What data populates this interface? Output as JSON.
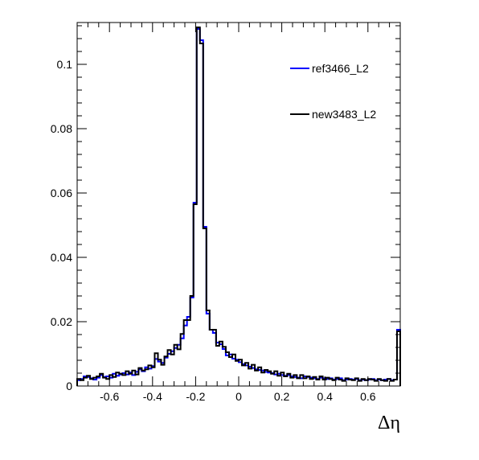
{
  "chart_data": {
    "type": "line",
    "style": "step-histogram",
    "title": "",
    "xlabel": "Δη",
    "ylabel": "",
    "xlim": [
      -0.75,
      0.75
    ],
    "ylim": [
      0,
      0.113
    ],
    "x_ticks": [
      -0.6,
      -0.4,
      -0.2,
      0,
      0.2,
      0.4,
      0.6
    ],
    "x_tick_labels": [
      "-0.6",
      "-0.4",
      "-0.2",
      "0",
      "0.2",
      "0.4",
      "0.6"
    ],
    "y_ticks": [
      0,
      0.02,
      0.04,
      0.06,
      0.08,
      0.1
    ],
    "y_tick_labels": [
      "0",
      "0.02",
      "0.04",
      "0.06",
      "0.08",
      "0.1"
    ],
    "grid": false,
    "legend_position": "top-right",
    "bin_edges_start": -0.75,
    "bin_width": 0.015,
    "series": [
      {
        "name": "ref3466_L2",
        "color": "#0000ff",
        "values": [
          0.0018,
          0.0022,
          0.003,
          0.0028,
          0.0024,
          0.002,
          0.0026,
          0.0034,
          0.0028,
          0.003,
          0.0026,
          0.0038,
          0.0032,
          0.0036,
          0.004,
          0.0036,
          0.0042,
          0.0034,
          0.0044,
          0.0052,
          0.0046,
          0.0058,
          0.0054,
          0.0062,
          0.0084,
          0.0076,
          0.0072,
          0.0088,
          0.01,
          0.0108,
          0.0118,
          0.0128,
          0.0148,
          0.0188,
          0.0215,
          0.0275,
          0.057,
          0.111,
          0.1075,
          0.0495,
          0.0225,
          0.0175,
          0.0165,
          0.0135,
          0.013,
          0.0115,
          0.0095,
          0.0098,
          0.0085,
          0.0082,
          0.0074,
          0.0068,
          0.0064,
          0.006,
          0.0056,
          0.0052,
          0.005,
          0.0048,
          0.0044,
          0.0042,
          0.004,
          0.0036,
          0.0038,
          0.0034,
          0.0032,
          0.0034,
          0.003,
          0.0028,
          0.0026,
          0.0024,
          0.003,
          0.0028,
          0.0026,
          0.0024,
          0.0022,
          0.0026,
          0.0024,
          0.0022,
          0.0024,
          0.002,
          0.0022,
          0.0024,
          0.0018,
          0.002,
          0.0022,
          0.002,
          0.0022,
          0.0018,
          0.002,
          0.0018,
          0.002,
          0.0022,
          0.0018,
          0.002,
          0.0018,
          0.002,
          0.0022,
          0.0018,
          0.002,
          0.0175
        ]
      },
      {
        "name": "new3483_L2",
        "color": "#000000",
        "values": [
          0.0022,
          0.0018,
          0.0026,
          0.0032,
          0.0022,
          0.0026,
          0.003,
          0.0038,
          0.0026,
          0.0022,
          0.0034,
          0.0028,
          0.0042,
          0.0038,
          0.0034,
          0.0046,
          0.0038,
          0.0048,
          0.0036,
          0.0056,
          0.0048,
          0.0052,
          0.0064,
          0.0058,
          0.0102,
          0.0082,
          0.0066,
          0.0092,
          0.0112,
          0.0098,
          0.0128,
          0.0114,
          0.0162,
          0.0205,
          0.0205,
          0.028,
          0.0565,
          0.1115,
          0.1065,
          0.049,
          0.0235,
          0.0175,
          0.0175,
          0.0125,
          0.0138,
          0.0122,
          0.0105,
          0.009,
          0.0098,
          0.0078,
          0.0082,
          0.0064,
          0.0072,
          0.0054,
          0.0066,
          0.0048,
          0.0058,
          0.0042,
          0.005,
          0.0046,
          0.0038,
          0.0046,
          0.0032,
          0.0042,
          0.003,
          0.0038,
          0.0026,
          0.0034,
          0.0024,
          0.0034,
          0.0024,
          0.003,
          0.0022,
          0.0028,
          0.002,
          0.003,
          0.002,
          0.0026,
          0.0022,
          0.0018,
          0.0026,
          0.002,
          0.0016,
          0.0024,
          0.002,
          0.0018,
          0.0024,
          0.0016,
          0.0022,
          0.0018,
          0.0022,
          0.002,
          0.0016,
          0.0022,
          0.0018,
          0.0016,
          0.0022,
          0.0016,
          0.002,
          0.017
        ]
      }
    ]
  }
}
